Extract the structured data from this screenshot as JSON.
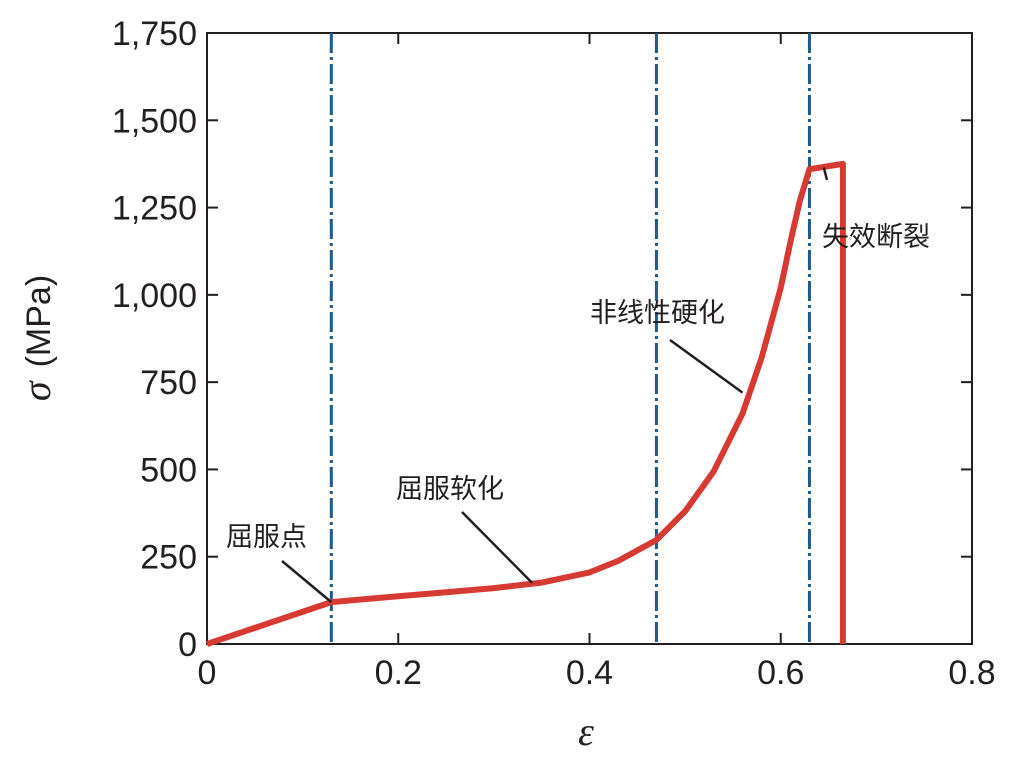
{
  "chart_data": {
    "type": "line",
    "xlabel": "ε",
    "ylabel": "σ",
    "ylabel_unit": "(MPa)",
    "xlim": [
      0,
      0.8
    ],
    "ylim": [
      0,
      1750
    ],
    "x_ticks": [
      0,
      0.2,
      0.4,
      0.6,
      0.8
    ],
    "x_tick_labels": [
      "0",
      "0.2",
      "0.4",
      "0.6",
      "0.8"
    ],
    "y_ticks": [
      0,
      250,
      500,
      750,
      1000,
      1250,
      1500,
      1750
    ],
    "y_tick_labels": [
      "0",
      "250",
      "500",
      "750",
      "1,000",
      "1,250",
      "1,500",
      "1,750"
    ],
    "grid": false,
    "colors": {
      "curve": "#d63a32",
      "divider": "#1f5a8a",
      "axis": "#231f20"
    },
    "series": [
      {
        "x": [
          0,
          0.13,
          0.2,
          0.25,
          0.3,
          0.35,
          0.4,
          0.43,
          0.47,
          0.5,
          0.53,
          0.56,
          0.58,
          0.6,
          0.61,
          0.62,
          0.63,
          0.665,
          0.665
        ],
        "y": [
          0,
          120,
          137,
          148,
          160,
          176,
          205,
          238,
          298,
          380,
          495,
          660,
          820,
          1020,
          1150,
          1270,
          1360,
          1375,
          0
        ]
      }
    ],
    "vertical_lines": [
      0.13,
      0.47,
      0.63
    ],
    "annotations": [
      {
        "text": "屈服点",
        "point": [
          0.13,
          120
        ]
      },
      {
        "text": "屈服软化",
        "point": [
          0.34,
          175
        ]
      },
      {
        "text": "非线性硬化",
        "point": [
          0.56,
          720
        ]
      },
      {
        "text": "失效断裂",
        "point": [
          0.645,
          1365
        ]
      }
    ]
  }
}
